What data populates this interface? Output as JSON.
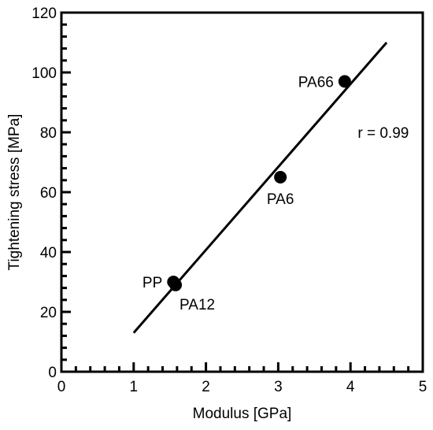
{
  "chart_data": {
    "type": "scatter",
    "xlabel": "Modulus [GPa]",
    "ylabel": "Tightening stress [MPa]",
    "xlim": [
      0,
      5
    ],
    "ylim": [
      0,
      120
    ],
    "x_ticks": [
      0,
      1,
      2,
      3,
      4,
      5
    ],
    "y_ticks": [
      0,
      20,
      40,
      60,
      80,
      100,
      120
    ],
    "x_minor_step": 0.2,
    "y_minor_step": 4,
    "grid": false,
    "points": [
      {
        "label": "PP",
        "x": 1.55,
        "y": 30,
        "label_side": "left"
      },
      {
        "label": "PA12",
        "x": 1.58,
        "y": 29,
        "label_side": "below-right"
      },
      {
        "label": "PA6",
        "x": 3.03,
        "y": 65,
        "label_side": "below"
      },
      {
        "label": "PA66",
        "x": 3.92,
        "y": 97,
        "label_side": "left"
      }
    ],
    "fit_line": {
      "x": [
        1.0,
        4.5
      ],
      "y": [
        13,
        110
      ]
    },
    "annotations": [
      {
        "text": "r = 0.99",
        "x": 4.1,
        "y": 80
      }
    ]
  }
}
